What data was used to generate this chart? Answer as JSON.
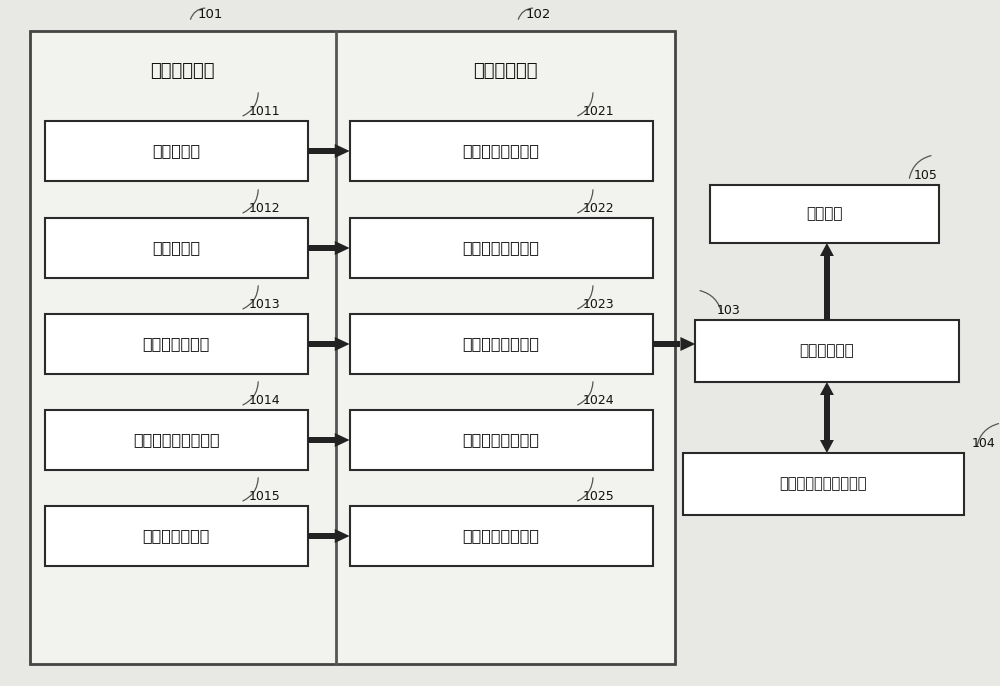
{
  "bg_color": "#e8e8e4",
  "box_fc": "#ffffff",
  "box_ec": "#333333",
  "text_color": "#111111",
  "arrow_color": "#333333",
  "left_panel_label": "信号采集模块",
  "right_panel_label": "信号处理模块",
  "label_101": "101",
  "label_102": "102",
  "label_103": "103",
  "label_104": "104",
  "label_105": "105",
  "sensors": [
    {
      "id": "1011",
      "text": "温度传感器"
    },
    {
      "id": "1012",
      "text": "湿度传感器"
    },
    {
      "id": "1013",
      "text": "氧气浓度传感器"
    },
    {
      "id": "1014",
      "text": "二氧化碳浓度传感器"
    },
    {
      "id": "1015",
      "text": "乙烯浓度传感器"
    }
  ],
  "circuits": [
    {
      "id": "1021",
      "text": "第一信号调理电路"
    },
    {
      "id": "1022",
      "text": "第二信号调理电路"
    },
    {
      "id": "1023",
      "text": "第三信号调理电路"
    },
    {
      "id": "1024",
      "text": "第四信号调理电路"
    },
    {
      "id": "1025",
      "text": "第五信号调理电路"
    }
  ],
  "micro_text": "微处理器模块",
  "display_text": "显示模块",
  "database_text": "水果新鲜度信息数据库",
  "figsize": [
    10.0,
    6.86
  ],
  "dpi": 100
}
